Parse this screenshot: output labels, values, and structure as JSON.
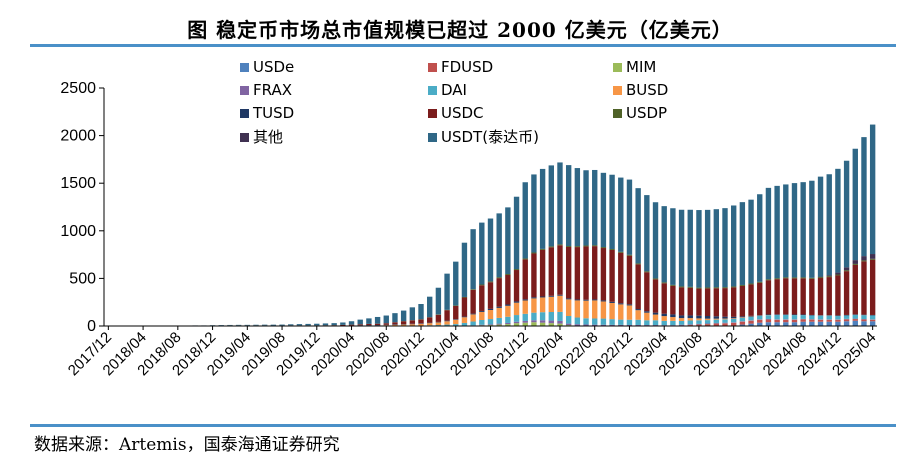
{
  "title": "图  稳定币市场总市值规模已超过 2000 亿美元（亿美元）",
  "source": "数据来源：Artemis，国泰海通证券研究",
  "chart_data": {
    "type": "bar",
    "stacked": true,
    "title": "图  稳定币市场总市值规模已超过 2000 亿美元（亿美元）",
    "xlabel": "",
    "ylabel": "",
    "ylim": [
      0,
      2500
    ],
    "yticks": [
      0,
      500,
      1000,
      1500,
      2000,
      2500
    ],
    "grid": false,
    "legend_position": "top",
    "x_tick_labels": [
      "2017/12",
      "2018/04",
      "2018/08",
      "2018/12",
      "2019/04",
      "2019/08",
      "2019/12",
      "2020/04",
      "2020/08",
      "2020/12",
      "2021/04",
      "2021/08",
      "2021/12",
      "2022/04",
      "2022/08",
      "2022/12",
      "2023/04",
      "2023/08",
      "2023/12",
      "2024/04",
      "2024/08",
      "2024/12",
      "2025/04"
    ],
    "categories": [
      "2017/12",
      "2018/01",
      "2018/02",
      "2018/03",
      "2018/04",
      "2018/05",
      "2018/06",
      "2018/07",
      "2018/08",
      "2018/09",
      "2018/10",
      "2018/11",
      "2018/12",
      "2019/01",
      "2019/02",
      "2019/03",
      "2019/04",
      "2019/05",
      "2019/06",
      "2019/07",
      "2019/08",
      "2019/09",
      "2019/10",
      "2019/11",
      "2019/12",
      "2020/01",
      "2020/02",
      "2020/03",
      "2020/04",
      "2020/05",
      "2020/06",
      "2020/07",
      "2020/08",
      "2020/09",
      "2020/10",
      "2020/11",
      "2020/12",
      "2021/01",
      "2021/02",
      "2021/03",
      "2021/04",
      "2021/05",
      "2021/06",
      "2021/07",
      "2021/08",
      "2021/09",
      "2021/10",
      "2021/11",
      "2021/12",
      "2022/01",
      "2022/02",
      "2022/03",
      "2022/04",
      "2022/05",
      "2022/06",
      "2022/07",
      "2022/08",
      "2022/09",
      "2022/10",
      "2022/11",
      "2022/12",
      "2023/01",
      "2023/02",
      "2023/03",
      "2023/04",
      "2023/05",
      "2023/06",
      "2023/07",
      "2023/08",
      "2023/09",
      "2023/10",
      "2023/11",
      "2023/12",
      "2024/01",
      "2024/02",
      "2024/03",
      "2024/04",
      "2024/05",
      "2024/06",
      "2024/07",
      "2024/08",
      "2024/09",
      "2024/10",
      "2024/11",
      "2024/12",
      "2025/01",
      "2025/02",
      "2025/03",
      "2025/04"
    ],
    "series": [
      {
        "name": "USDe",
        "color": "#4f81bd",
        "values": [
          0,
          0,
          0,
          0,
          0,
          0,
          0,
          0,
          0,
          0,
          0,
          0,
          0,
          0,
          0,
          0,
          0,
          0,
          0,
          0,
          0,
          0,
          0,
          0,
          0,
          0,
          0,
          0,
          0,
          0,
          0,
          0,
          0,
          0,
          0,
          0,
          0,
          0,
          0,
          0,
          0,
          0,
          0,
          0,
          0,
          0,
          0,
          0,
          0,
          0,
          0,
          0,
          0,
          0,
          0,
          0,
          0,
          0,
          0,
          0,
          0,
          0,
          0,
          0,
          0,
          0,
          0,
          0,
          0,
          0,
          0,
          0,
          5,
          15,
          25,
          35,
          40,
          40,
          40,
          40,
          45,
          45,
          45,
          45,
          45,
          50,
          55,
          50,
          50
        ]
      },
      {
        "name": "FDUSD",
        "color": "#c0504d",
        "values": [
          0,
          0,
          0,
          0,
          0,
          0,
          0,
          0,
          0,
          0,
          0,
          0,
          0,
          0,
          0,
          0,
          0,
          0,
          0,
          0,
          0,
          0,
          0,
          0,
          0,
          0,
          0,
          0,
          0,
          0,
          0,
          0,
          0,
          0,
          0,
          0,
          0,
          0,
          0,
          0,
          0,
          0,
          0,
          0,
          0,
          0,
          0,
          0,
          0,
          0,
          0,
          0,
          0,
          0,
          0,
          0,
          0,
          0,
          0,
          0,
          0,
          0,
          0,
          0,
          0,
          0,
          5,
          10,
          15,
          20,
          25,
          28,
          28,
          30,
          30,
          30,
          28,
          25,
          25,
          25,
          25,
          22,
          20,
          20,
          20,
          20,
          18,
          18,
          15
        ]
      },
      {
        "name": "MIM",
        "color": "#9bbb59",
        "values": [
          0,
          0,
          0,
          0,
          0,
          0,
          0,
          0,
          0,
          0,
          0,
          0,
          0,
          0,
          0,
          0,
          0,
          0,
          0,
          0,
          0,
          0,
          0,
          0,
          0,
          0,
          0,
          0,
          0,
          0,
          0,
          0,
          0,
          0,
          0,
          0,
          0,
          0,
          0,
          0,
          0,
          2,
          5,
          8,
          10,
          15,
          20,
          30,
          35,
          40,
          35,
          30,
          25,
          10,
          5,
          3,
          2,
          2,
          2,
          2,
          1,
          1,
          1,
          1,
          1,
          1,
          1,
          1,
          1,
          1,
          1,
          1,
          1,
          1,
          1,
          1,
          1,
          1,
          1,
          1,
          1,
          1,
          1,
          1,
          1,
          1,
          1,
          1,
          1
        ]
      },
      {
        "name": "FRAX",
        "color": "#8064a2",
        "values": [
          0,
          0,
          0,
          0,
          0,
          0,
          0,
          0,
          0,
          0,
          0,
          0,
          0,
          0,
          0,
          0,
          0,
          0,
          0,
          0,
          0,
          0,
          0,
          0,
          0,
          0,
          0,
          0,
          0,
          0,
          0,
          0,
          0,
          0,
          0,
          0,
          0,
          0,
          0,
          0,
          0,
          0,
          2,
          5,
          8,
          10,
          12,
          15,
          18,
          20,
          25,
          27,
          28,
          15,
          14,
          13,
          12,
          11,
          10,
          10,
          10,
          10,
          9,
          9,
          8,
          8,
          7,
          7,
          6,
          6,
          6,
          6,
          6,
          5,
          5,
          5,
          5,
          5,
          5,
          4,
          4,
          4,
          4,
          4,
          4,
          4,
          4,
          4,
          4
        ]
      },
      {
        "name": "DAI",
        "color": "#4bacc6",
        "values": [
          0,
          0,
          0,
          0,
          0,
          0,
          0,
          0,
          0,
          0,
          0,
          0,
          0,
          0,
          0,
          0,
          0,
          0,
          0,
          0,
          0,
          0,
          0,
          0,
          0,
          0,
          0,
          0,
          0,
          0,
          0,
          0,
          1,
          2,
          3,
          4,
          5,
          8,
          10,
          15,
          20,
          30,
          40,
          50,
          55,
          60,
          65,
          70,
          75,
          80,
          85,
          90,
          95,
          80,
          70,
          65,
          65,
          65,
          60,
          55,
          55,
          55,
          50,
          50,
          45,
          45,
          40,
          40,
          38,
          35,
          35,
          35,
          35,
          35,
          35,
          35,
          40,
          45,
          45,
          45,
          40,
          38,
          38,
          38,
          35,
          35,
          38,
          40,
          40
        ]
      },
      {
        "name": "BUSD",
        "color": "#f79646",
        "values": [
          0,
          0,
          0,
          0,
          0,
          0,
          0,
          0,
          0,
          0,
          0,
          0,
          0,
          0,
          0,
          0,
          0,
          0,
          0,
          0,
          0,
          0,
          0,
          0,
          0,
          0,
          0,
          2,
          3,
          4,
          5,
          6,
          8,
          10,
          12,
          15,
          18,
          22,
          28,
          35,
          45,
          60,
          75,
          85,
          95,
          105,
          115,
          130,
          140,
          150,
          155,
          160,
          170,
          175,
          180,
          185,
          190,
          180,
          170,
          160,
          150,
          100,
          80,
          60,
          50,
          40,
          30,
          25,
          20,
          15,
          10,
          8,
          6,
          5,
          3,
          2,
          2,
          1,
          1,
          1,
          1,
          1,
          1,
          1,
          1,
          1,
          1,
          1,
          1
        ]
      },
      {
        "name": "TUSD",
        "color": "#1f3864",
        "values": [
          0,
          0,
          0,
          0,
          0,
          0,
          0,
          0,
          0,
          0,
          0,
          0,
          1,
          2,
          3,
          3,
          3,
          3,
          3,
          2,
          2,
          2,
          2,
          2,
          2,
          2,
          3,
          3,
          3,
          4,
          4,
          4,
          4,
          5,
          5,
          5,
          5,
          5,
          5,
          6,
          6,
          7,
          8,
          10,
          12,
          13,
          14,
          13,
          12,
          12,
          10,
          10,
          10,
          10,
          10,
          10,
          10,
          11,
          12,
          12,
          12,
          12,
          15,
          20,
          25,
          28,
          28,
          28,
          28,
          28,
          25,
          20,
          15,
          10,
          8,
          6,
          5,
          5,
          5,
          5,
          5,
          5,
          5,
          5,
          5,
          5,
          5,
          5,
          5
        ]
      },
      {
        "name": "USDC",
        "color": "#7b1c1c",
        "values": [
          0,
          0,
          0,
          0,
          0,
          0,
          0,
          0,
          0,
          0,
          1,
          1,
          2,
          2,
          3,
          3,
          3,
          3,
          3,
          3,
          3,
          4,
          4,
          4,
          4,
          5,
          5,
          6,
          8,
          10,
          12,
          14,
          16,
          22,
          30,
          35,
          40,
          55,
          75,
          110,
          140,
          200,
          250,
          270,
          280,
          300,
          310,
          330,
          420,
          460,
          490,
          510,
          520,
          540,
          550,
          560,
          560,
          550,
          545,
          530,
          510,
          470,
          410,
          350,
          320,
          300,
          295,
          290,
          285,
          290,
          295,
          300,
          310,
          320,
          330,
          340,
          360,
          370,
          380,
          380,
          380,
          380,
          390,
          400,
          420,
          460,
          520,
          560,
          580
        ]
      },
      {
        "name": "USDP",
        "color": "#4f6228",
        "values": [
          0,
          0,
          0,
          0,
          0,
          0,
          0,
          0,
          0,
          0,
          1,
          1,
          1,
          1,
          1,
          1,
          1,
          1,
          1,
          1,
          1,
          1,
          1,
          1,
          1,
          1,
          1,
          1,
          1,
          1,
          1,
          1,
          1,
          1,
          2,
          2,
          3,
          3,
          4,
          4,
          5,
          6,
          7,
          8,
          9,
          10,
          10,
          10,
          10,
          10,
          10,
          10,
          10,
          10,
          10,
          10,
          10,
          10,
          10,
          10,
          10,
          10,
          10,
          10,
          10,
          10,
          10,
          10,
          10,
          10,
          10,
          10,
          10,
          10,
          10,
          10,
          10,
          10,
          10,
          10,
          10,
          10,
          10,
          10,
          10,
          10,
          10,
          10,
          10
        ]
      },
      {
        "name": "其他",
        "color": "#403151",
        "values": [
          0,
          0,
          0,
          0,
          0,
          0,
          0,
          0,
          0,
          0,
          0,
          0,
          0,
          0,
          0,
          0,
          0,
          0,
          0,
          0,
          0,
          0,
          0,
          0,
          0,
          0,
          0,
          0,
          0,
          0,
          0,
          0,
          0,
          0,
          0,
          0,
          0,
          0,
          0,
          0,
          0,
          0,
          0,
          0,
          0,
          0,
          0,
          0,
          0,
          0,
          0,
          0,
          0,
          0,
          0,
          0,
          0,
          0,
          0,
          0,
          0,
          0,
          0,
          0,
          0,
          0,
          0,
          0,
          0,
          0,
          0,
          0,
          0,
          0,
          0,
          0,
          0,
          0,
          0,
          0,
          0,
          0,
          5,
          10,
          20,
          30,
          40,
          45,
          50
        ]
      },
      {
        "name": "USDT(泰达币)",
        "color": "#2f6786",
        "values": [
          3,
          3,
          3,
          3,
          3,
          3,
          3,
          3,
          3,
          3,
          4,
          4,
          4,
          4,
          4,
          5,
          5,
          6,
          7,
          8,
          9,
          11,
          13,
          15,
          17,
          19,
          21,
          25,
          35,
          48,
          58,
          70,
          80,
          95,
          110,
          135,
          160,
          215,
          280,
          380,
          460,
          570,
          630,
          650,
          660,
          670,
          700,
          760,
          800,
          820,
          840,
          850,
          860,
          850,
          820,
          790,
          790,
          780,
          780,
          780,
          790,
          790,
          800,
          800,
          800,
          805,
          805,
          810,
          815,
          815,
          820,
          830,
          850,
          870,
          880,
          920,
          960,
          970,
          975,
          990,
          1000,
          1020,
          1050,
          1060,
          1090,
          1120,
          1170,
          1250,
          1360
        ]
      }
    ]
  }
}
